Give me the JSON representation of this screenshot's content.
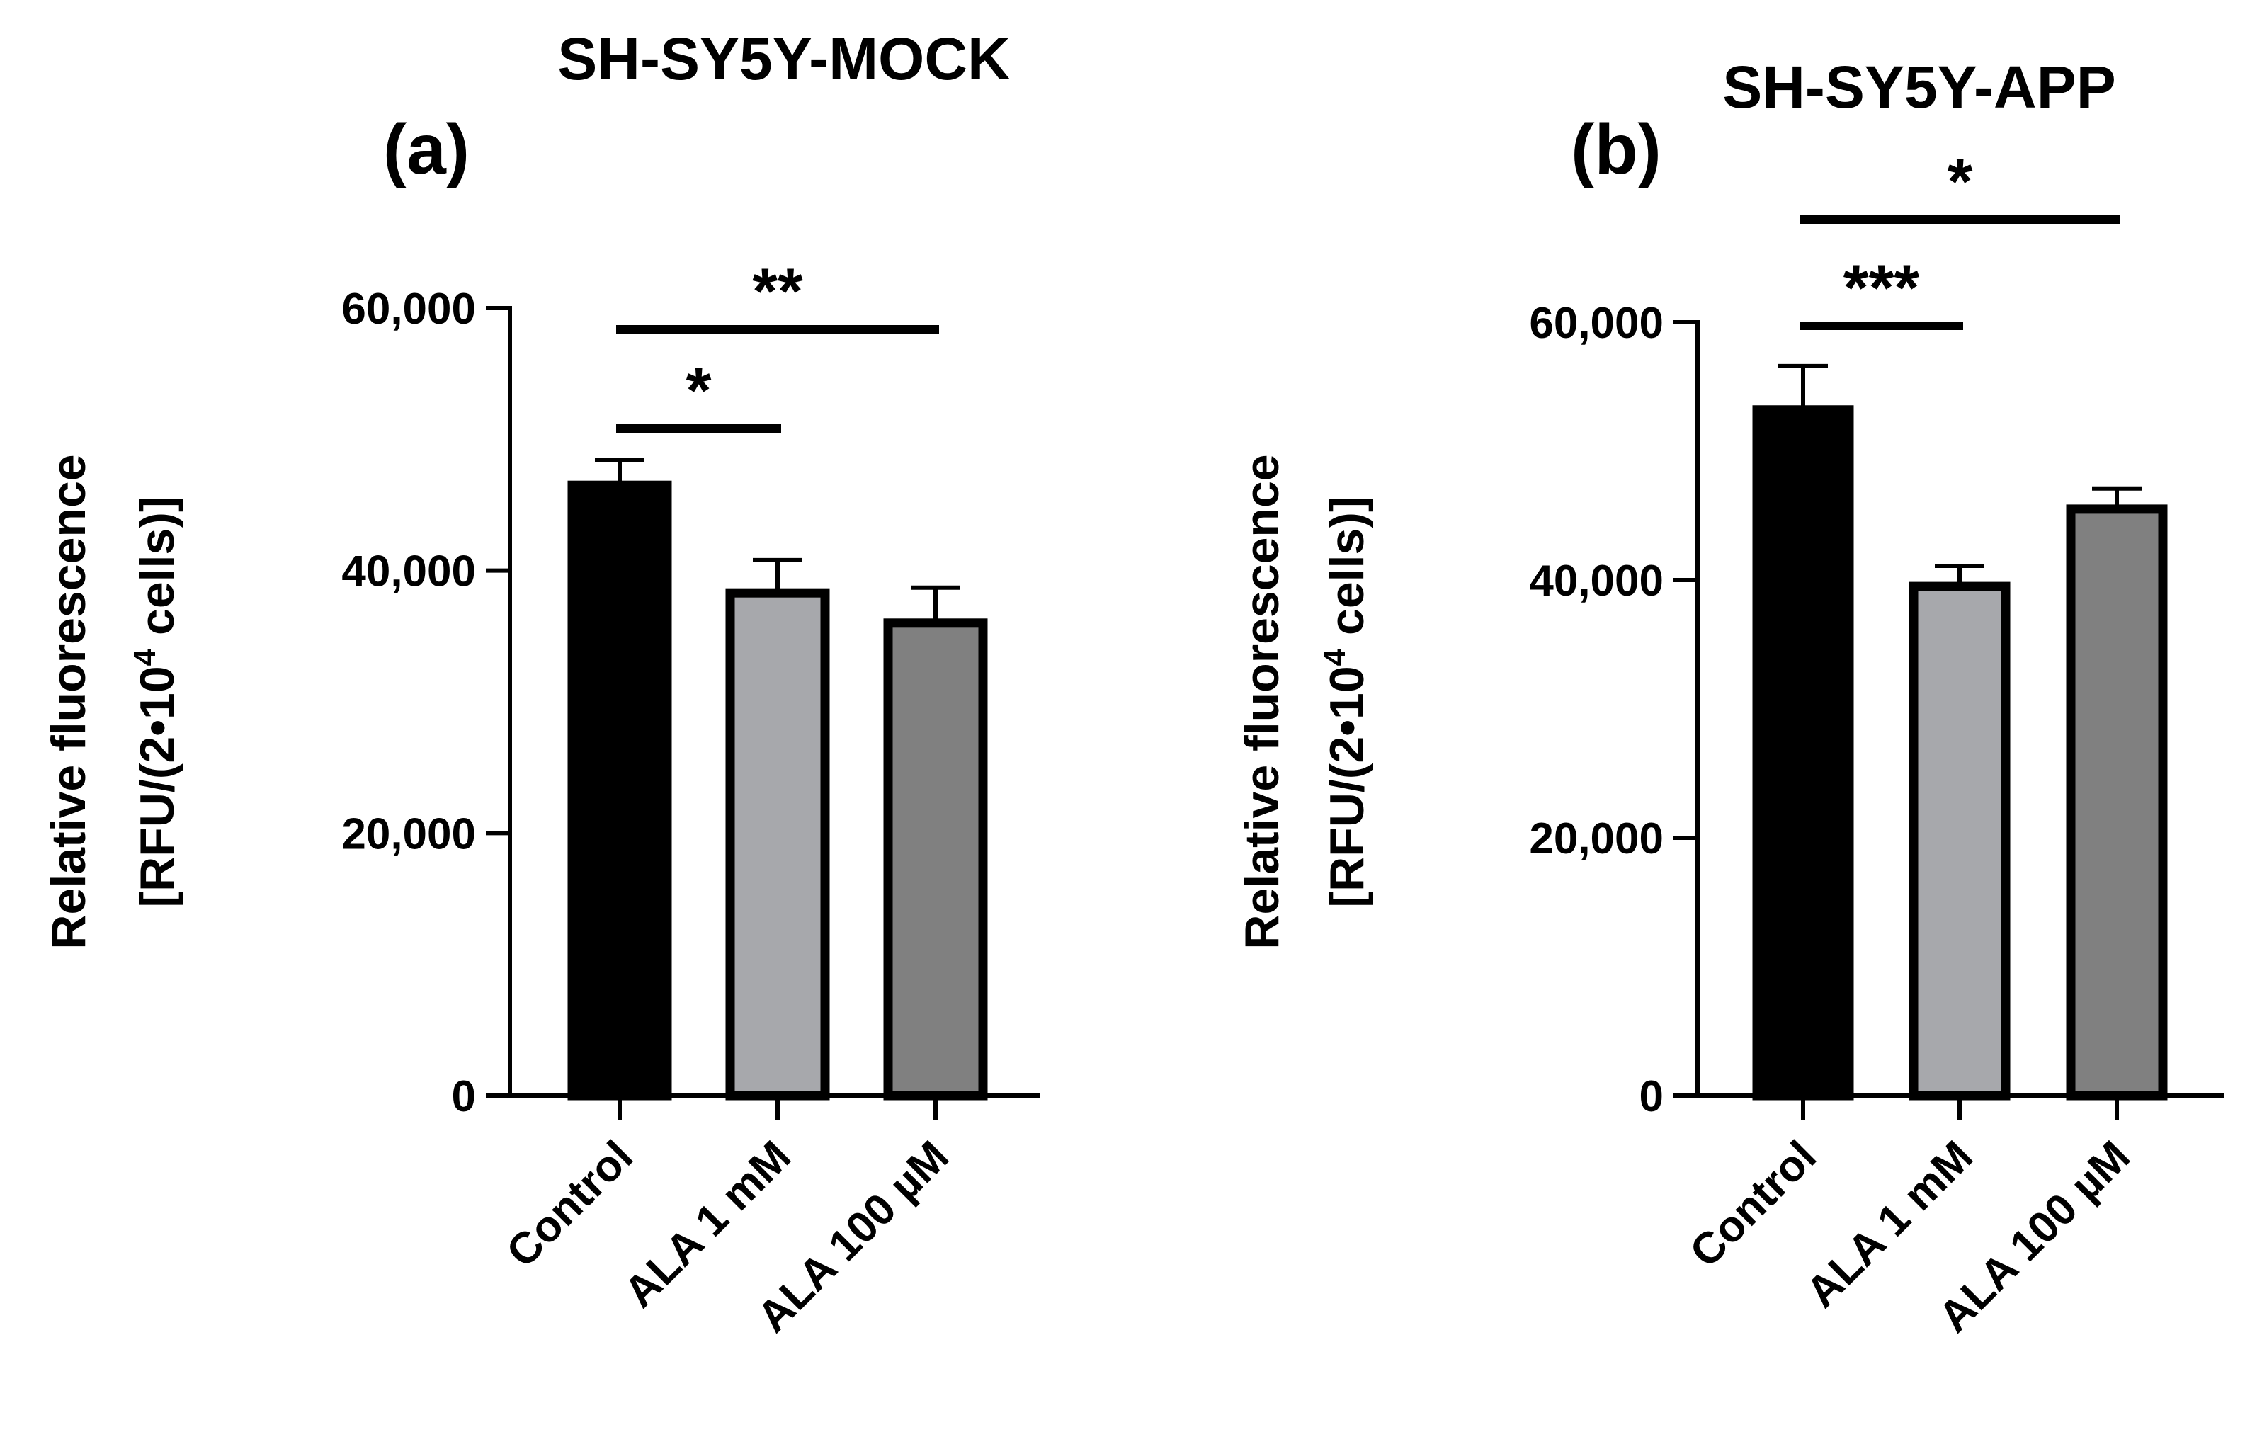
{
  "chart_data": [
    {
      "type": "bar",
      "panel_label": "(a)",
      "title": "SH-SY5Y-MOCK",
      "ylabel_line1": "Relative fluorescence",
      "ylabel_line2_prefix": "[RFU/(2•10",
      "ylabel_superscript": "4",
      "ylabel_line2_suffix": " cells)]",
      "ylim": [
        0,
        60000
      ],
      "yticks": [
        0,
        20000,
        40000,
        60000
      ],
      "ytick_labels": [
        "0",
        "20,000",
        "40,000",
        "60,000"
      ],
      "categories": [
        "Control",
        "ALA 1 mM",
        "ALA 100 µM"
      ],
      "values": [
        46500,
        38300,
        36000
      ],
      "errors": [
        1900,
        2500,
        2700
      ],
      "bar_colors": [
        "#000000",
        "#a7a8ac",
        "#808080"
      ],
      "significance": [
        {
          "from": 0,
          "to": 1,
          "label": "*"
        },
        {
          "from": 0,
          "to": 2,
          "label": "**"
        }
      ]
    },
    {
      "type": "bar",
      "panel_label": "(b)",
      "title": "SH-SY5Y-APP",
      "ylabel_line1": "Relative fluorescence",
      "ylabel_line2_prefix": "[RFU/(2•10",
      "ylabel_superscript": "4",
      "ylabel_line2_suffix": " cells)]",
      "ylim": [
        0,
        60000
      ],
      "yticks": [
        0,
        20000,
        40000,
        60000
      ],
      "ytick_labels": [
        "0",
        "20,000",
        "40,000",
        "60,000"
      ],
      "categories": [
        "Control",
        "ALA 1 mM",
        "ALA 100 µM"
      ],
      "values": [
        53200,
        39500,
        45500
      ],
      "errors": [
        3400,
        1600,
        1600
      ],
      "bar_colors": [
        "#000000",
        "#a7a8ac",
        "#808080"
      ],
      "significance": [
        {
          "from": 0,
          "to": 1,
          "label": "***"
        },
        {
          "from": 0,
          "to": 2,
          "label": "*"
        }
      ]
    }
  ]
}
